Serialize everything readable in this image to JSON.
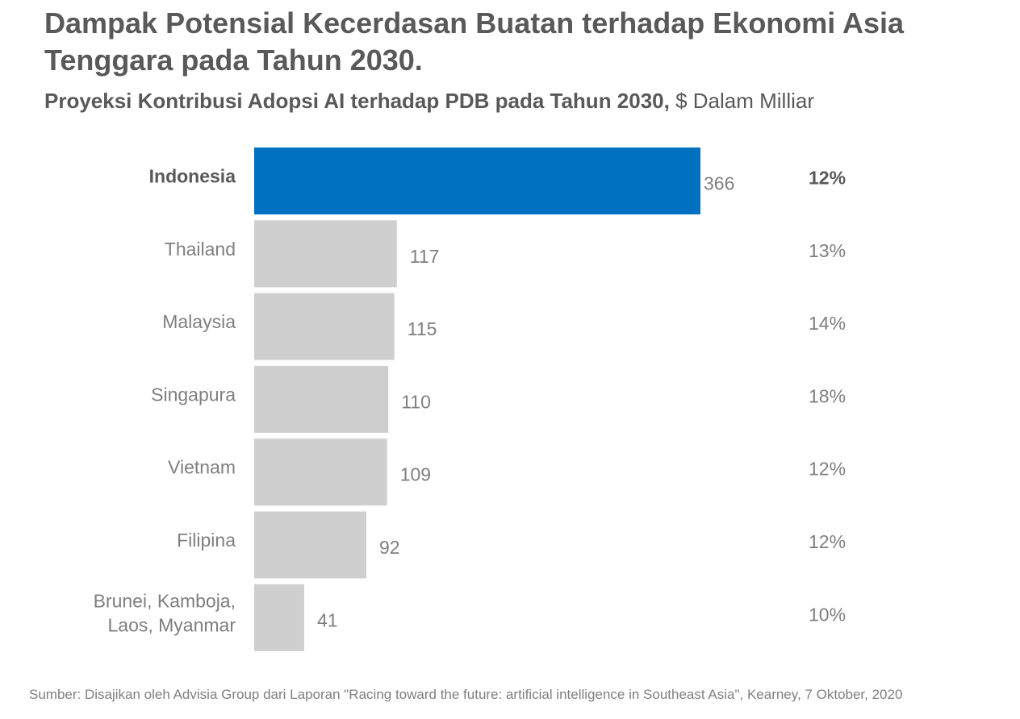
{
  "title": "Dampak Potensial Kecerdasan Buatan terhadap Ekonomi Asia Tenggara pada Tahun 2030.",
  "subtitle": {
    "bold": "Proyeksi Kontribusi Adopsi AI terhadap PDB pada Tahun 2030,",
    "regular": " $ Dalam Milliar"
  },
  "source": "Sumber: Disajikan oleh Advisia Group dari Laporan \"Racing toward the future: artificial intelligence in Southeast Asia\", Kearney, 7 Oktober, 2020",
  "colors": {
    "highlight": "#0070c0",
    "bar": "#d0cfcf",
    "text_dark": "#595959",
    "text_light": "#7f7f7f"
  },
  "chart_data": {
    "type": "bar",
    "orientation": "horizontal",
    "categories": [
      "Indonesia",
      "Thailand",
      "Malaysia",
      "Singapura",
      "Vietnam",
      "Filipina",
      "Brunei, Kamboja, Laos, Myanmar"
    ],
    "category_lines": [
      [
        "Indonesia"
      ],
      [
        "Thailand"
      ],
      [
        "Malaysia"
      ],
      [
        "Singapura"
      ],
      [
        "Vietnam"
      ],
      [
        "Filipina"
      ],
      [
        "Brunei, Kamboja,",
        "Laos, Myanmar"
      ]
    ],
    "values": [
      366,
      117,
      115,
      110,
      109,
      92,
      41
    ],
    "percentages": [
      "12%",
      "13%",
      "14%",
      "18%",
      "12%",
      "12%",
      "10%"
    ],
    "highlight_index": 0,
    "xlim": [
      0,
      366
    ],
    "grid": false,
    "legend": "none"
  }
}
